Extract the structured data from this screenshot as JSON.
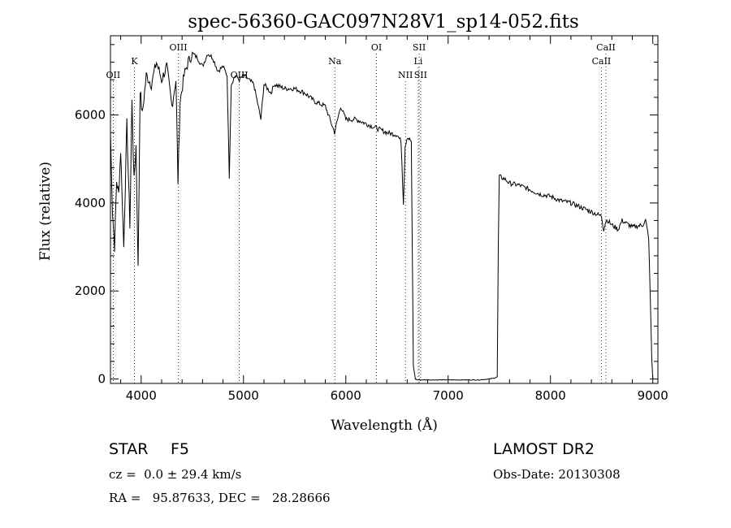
{
  "chart_data": {
    "type": "line",
    "title": "spec-56360-GAC097N28V1_sp14-052.fits",
    "xlabel": "Wavelength (Å)",
    "ylabel": "Flux (relative)",
    "xlim": [
      3700,
      9050
    ],
    "ylim": [
      -100,
      7800
    ],
    "xticks": [
      4000,
      5000,
      6000,
      7000,
      8000,
      9000
    ],
    "yticks": [
      0,
      2000,
      4000,
      6000
    ],
    "grid": false,
    "series": [
      {
        "x": [
          3700,
          3720,
          3740,
          3760,
          3780,
          3800,
          3830,
          3860,
          3890,
          3910,
          3930,
          3950,
          3970,
          3990,
          4010,
          4050,
          4100,
          4150,
          4200,
          4250,
          4300,
          4340,
          4360,
          4380,
          4420,
          4460,
          4500,
          4550,
          4600,
          4650,
          4700,
          4750,
          4800,
          4840,
          4861,
          4880,
          4920,
          4960,
          5000,
          5100,
          5170,
          5200,
          5270,
          5300,
          5400,
          5500,
          5600,
          5700,
          5800,
          5890,
          5950,
          6000,
          6100,
          6200,
          6300,
          6400,
          6500,
          6540,
          6563,
          6580,
          6600,
          6640,
          6660,
          6680,
          6700,
          6800,
          6900,
          7000,
          7100,
          7200,
          7300,
          7400,
          7450,
          7480,
          7490,
          7500,
          7550,
          7600,
          7700,
          7800,
          7900,
          8000,
          8100,
          8200,
          8300,
          8400,
          8498,
          8520,
          8542,
          8560,
          8600,
          8662,
          8700,
          8800,
          8900,
          8930,
          8960,
          8990,
          9000
        ],
        "y": [
          5600,
          3800,
          3000,
          4500,
          4200,
          5200,
          3000,
          5800,
          3500,
          6300,
          4500,
          5300,
          2500,
          6600,
          6000,
          6900,
          6700,
          7200,
          6800,
          7100,
          6200,
          6800,
          4500,
          6300,
          6900,
          7200,
          7400,
          7300,
          7100,
          7400,
          7300,
          7000,
          7100,
          6900,
          4600,
          6700,
          6900,
          6800,
          6900,
          6700,
          5900,
          6700,
          6500,
          6700,
          6600,
          6600,
          6500,
          6300,
          6200,
          5600,
          6200,
          5900,
          5900,
          5800,
          5700,
          5600,
          5550,
          5400,
          4000,
          5300,
          5500,
          5400,
          300,
          0,
          -20,
          -20,
          -20,
          -20,
          -20,
          -20,
          -20,
          0,
          20,
          50,
          3000,
          4600,
          4550,
          4450,
          4400,
          4300,
          4200,
          4150,
          4050,
          4000,
          3900,
          3800,
          3700,
          3400,
          3600,
          3600,
          3500,
          3400,
          3600,
          3450,
          3500,
          3600,
          3200,
          500,
          0
        ]
      }
    ],
    "line_marks": [
      {
        "label": "OII",
        "x": 3727,
        "level": 3
      },
      {
        "label": "K",
        "x": 3934,
        "level": 2
      },
      {
        "label": "OIII",
        "x": 4363,
        "level": 1
      },
      {
        "label": "OIII",
        "x": 4959,
        "level": 3
      },
      {
        "label": "Na",
        "x": 5893,
        "level": 2
      },
      {
        "label": "OI",
        "x": 6300,
        "level": 1
      },
      {
        "label": "NII",
        "x": 6583,
        "level": 3
      },
      {
        "label": "SII",
        "x": 6717,
        "level": 1
      },
      {
        "label": "Li",
        "x": 6708,
        "level": 2
      },
      {
        "label": "SII",
        "x": 6731,
        "level": 3
      },
      {
        "label": "CaII",
        "x": 8498,
        "level": 2
      },
      {
        "label": "CaII",
        "x": 8542,
        "level": 1
      }
    ]
  },
  "info": {
    "object_type": "STAR",
    "subclass": "F5",
    "survey": "LAMOST DR2",
    "redshift": "cz =  0.0 ± 29.4 km/s",
    "obs_date": "Obs-Date: 20130308",
    "coords": "RA =   95.87633, DEC =   28.28666"
  }
}
